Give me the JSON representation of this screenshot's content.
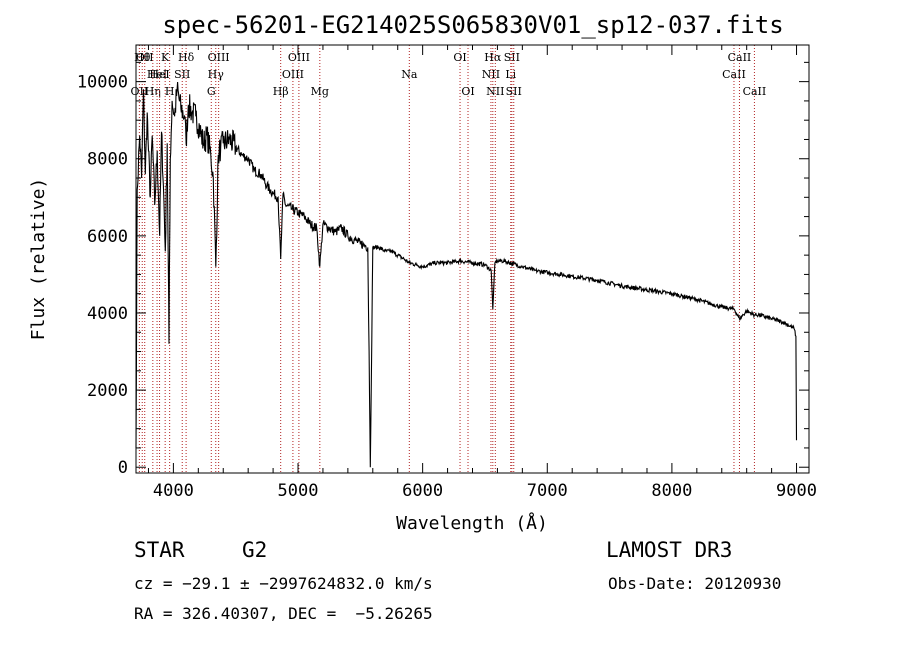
{
  "chart_data": {
    "type": "line",
    "title": "spec-56201-EG214025S065830V01_sp12-037.fits",
    "xlabel": "Wavelength (Å)",
    "ylabel": "Flux (relative)",
    "xlim": [
      3700,
      9100
    ],
    "ylim": [
      -150,
      10950
    ],
    "x_ticks": [
      4000,
      5000,
      6000,
      7000,
      8000,
      9000
    ],
    "y_ticks": [
      0,
      2000,
      4000,
      6000,
      8000,
      10000
    ],
    "grid": false,
    "line_color": "#000000",
    "marker_color": "#b22222",
    "series": [
      {
        "x": [
          3700,
          3710,
          3730,
          3745,
          3760,
          3775,
          3790,
          3800,
          3815,
          3830,
          3850,
          3870,
          3890,
          3905,
          3920,
          3935,
          3950,
          3965,
          3975,
          3990,
          4010,
          4030,
          4060,
          4090,
          4102,
          4120,
          4150,
          4180,
          4210,
          4240,
          4270,
          4300,
          4320,
          4340,
          4360,
          4380,
          4400,
          4450,
          4500,
          4550,
          4600,
          4650,
          4700,
          4750,
          4800,
          4840,
          4861,
          4880,
          4900,
          4950,
          5000,
          5050,
          5100,
          5150,
          5175,
          5200,
          5250,
          5300,
          5350,
          5400,
          5450,
          5500,
          5540,
          5560,
          5570,
          5580,
          5600,
          5650,
          5700,
          5750,
          5800,
          5850,
          5893,
          5950,
          6000,
          6100,
          6200,
          6300,
          6400,
          6500,
          6550,
          6563,
          6580,
          6600,
          6650,
          6700,
          6750,
          6800,
          6900,
          7000,
          7200,
          7400,
          7600,
          7800,
          8000,
          8200,
          8400,
          8500,
          8542,
          8600,
          8662,
          8700,
          8800,
          8900,
          8980,
          8995,
          9000
        ],
        "y": [
          500,
          7200,
          8600,
          7500,
          9800,
          7600,
          9200,
          8200,
          7000,
          8600,
          6800,
          8200,
          6000,
          8700,
          7300,
          5600,
          8400,
          3200,
          8000,
          9500,
          9100,
          9800,
          9300,
          9100,
          8400,
          9400,
          9200,
          9100,
          8800,
          8400,
          8600,
          8100,
          7500,
          5200,
          8100,
          8300,
          8400,
          8500,
          8300,
          8100,
          8000,
          7700,
          7600,
          7300,
          7100,
          7000,
          5400,
          7100,
          6800,
          6700,
          6600,
          6500,
          6300,
          6200,
          5200,
          6300,
          6200,
          6100,
          6200,
          6000,
          5900,
          5800,
          5750,
          5700,
          3000,
          0,
          5700,
          5700,
          5600,
          5600,
          5500,
          5400,
          5300,
          5250,
          5200,
          5300,
          5300,
          5350,
          5300,
          5250,
          5100,
          4100,
          5300,
          5350,
          5350,
          5300,
          5250,
          5200,
          5100,
          5050,
          4950,
          4850,
          4700,
          4600,
          4500,
          4350,
          4150,
          4100,
          3850,
          4050,
          3950,
          3950,
          3850,
          3750,
          3600,
          3400,
          700
        ]
      }
    ],
    "lines": [
      {
        "x": 3727,
        "label": "OII",
        "row": 2
      },
      {
        "x": 3750,
        "label": "Hθ",
        "row": 0
      },
      {
        "x": 3770,
        "label": "OII",
        "row": 0
      },
      {
        "x": 3835,
        "label": "Hη",
        "row": 2
      },
      {
        "x": 3869,
        "label": "HeI",
        "row": 1
      },
      {
        "x": 3889,
        "label": "HeI",
        "row": 1
      },
      {
        "x": 3934,
        "label": "K",
        "row": 0
      },
      {
        "x": 3970,
        "label": "H",
        "row": 2
      },
      {
        "x": 4071,
        "label": "SII",
        "row": 1
      },
      {
        "x": 4102,
        "label": "Hδ",
        "row": 0
      },
      {
        "x": 4304,
        "label": "G",
        "row": 2
      },
      {
        "x": 4340,
        "label": "Hγ",
        "row": 1
      },
      {
        "x": 4363,
        "label": "OIII",
        "row": 0
      },
      {
        "x": 4861,
        "label": "Hβ",
        "row": 2
      },
      {
        "x": 4959,
        "label": "OIII",
        "row": 1
      },
      {
        "x": 5007,
        "label": "OIII",
        "row": 0
      },
      {
        "x": 5175,
        "label": "Mg",
        "row": 2
      },
      {
        "x": 5893,
        "label": "Na",
        "row": 1
      },
      {
        "x": 6300,
        "label": "OI",
        "row": 0
      },
      {
        "x": 6364,
        "label": "OI",
        "row": 2
      },
      {
        "x": 6548,
        "label": "NII",
        "row": 1
      },
      {
        "x": 6563,
        "label": "Hα",
        "row": 0
      },
      {
        "x": 6583,
        "label": "NII",
        "row": 2
      },
      {
        "x": 6707,
        "label": "Li",
        "row": 1
      },
      {
        "x": 6716,
        "label": "SII",
        "row": 0
      },
      {
        "x": 6731,
        "label": "SII",
        "row": 2
      },
      {
        "x": 8498,
        "label": "CaII",
        "row": 1
      },
      {
        "x": 8542,
        "label": "CaII",
        "row": 0
      },
      {
        "x": 8662,
        "label": "CaII",
        "row": 2
      }
    ]
  },
  "footer": {
    "class": "STAR",
    "subclass": "G2",
    "survey": "LAMOST DR3",
    "cz": "cz = −29.1 ± −2997624832.0 km/s",
    "obs_date": "Obs-Date: 20120930",
    "radec": "RA = 326.40307, DEC =  −5.26265"
  }
}
